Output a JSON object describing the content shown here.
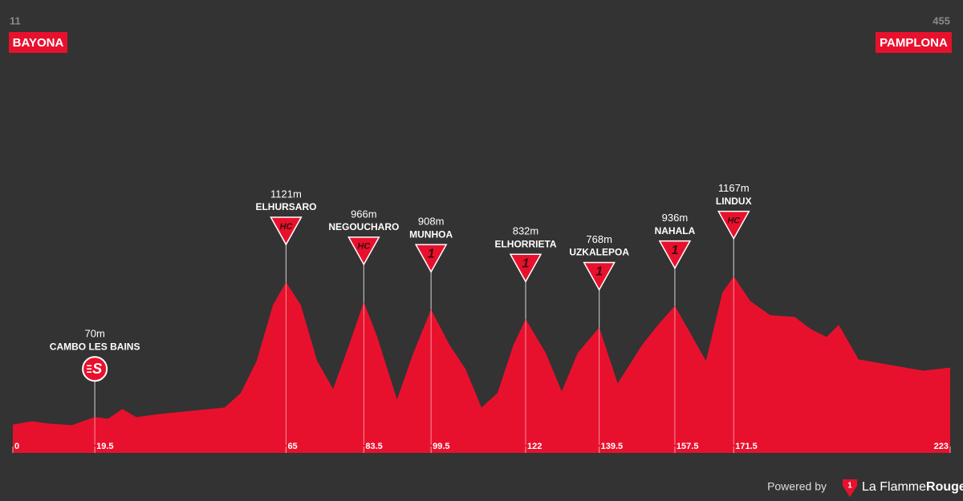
{
  "chart_data": {
    "type": "area",
    "color": "#e8112d",
    "start": {
      "elevation": 11,
      "name": "BAYONA"
    },
    "finish": {
      "elevation": 455,
      "name": "PAMPLONA"
    },
    "xlim": [
      0,
      223
    ],
    "ylim": [
      -210,
      1400
    ],
    "xticks": [
      0,
      19.5,
      65,
      83.5,
      99.5,
      122,
      139.5,
      157.5,
      171.5,
      223
    ],
    "x": [
      0,
      4.6,
      8.4,
      14.1,
      19.5,
      22.7,
      26,
      29.4,
      35.1,
      42.8,
      50.4,
      54.2,
      58,
      61.9,
      65,
      68.5,
      72.4,
      76.2,
      80,
      83.5,
      86.7,
      91.4,
      95.3,
      99.5,
      103.9,
      107.7,
      111.5,
      115.3,
      119.1,
      122,
      126.8,
      130.6,
      134.4,
      139.5,
      143.9,
      149.7,
      153.5,
      157.5,
      161.7,
      164.9,
      168.8,
      171.5,
      175.4,
      180.2,
      186,
      189.8,
      193.6,
      196.5,
      201.2,
      208.9,
      216.5,
      223
    ],
    "values": [
      11,
      37,
      19,
      6,
      70,
      56,
      131,
      69,
      94,
      119,
      144,
      256,
      506,
      944,
      1121,
      944,
      506,
      288,
      631,
      966,
      694,
      206,
      569,
      908,
      631,
      444,
      144,
      256,
      631,
      832,
      569,
      269,
      569,
      768,
      331,
      631,
      788,
      936,
      694,
      506,
      1038,
      1167,
      975,
      863,
      850,
      756,
      694,
      788,
      519,
      475,
      431,
      455
    ],
    "climbs": [
      {
        "name": "CAMBO LES BAINS",
        "km": 19.5,
        "elevation": 70,
        "elevation_label": "70m",
        "category": "S"
      },
      {
        "name": "ELHURSARO",
        "km": 65,
        "elevation": 1121,
        "elevation_label": "1121m",
        "category": "HC"
      },
      {
        "name": "NEGOUCHARO",
        "km": 83.5,
        "elevation": 966,
        "elevation_label": "966m",
        "category": "HC"
      },
      {
        "name": "MUNHOA",
        "km": 99.5,
        "elevation": 908,
        "elevation_label": "908m",
        "category": "1"
      },
      {
        "name": "ELHORRIETA",
        "km": 122,
        "elevation": 832,
        "elevation_label": "832m",
        "category": "1"
      },
      {
        "name": "UZKALEPOA",
        "km": 139.5,
        "elevation": 768,
        "elevation_label": "768m",
        "category": "1"
      },
      {
        "name": "NAHALA",
        "km": 157.5,
        "elevation": 936,
        "elevation_label": "936m",
        "category": "1"
      },
      {
        "name": "LINDUX",
        "km": 171.5,
        "elevation": 1167,
        "elevation_label": "1167m",
        "category": "HC"
      }
    ]
  },
  "footer": {
    "powered": "Powered by",
    "logo": "1",
    "brand": "La Flamme",
    "brand_bold": "Rouge"
  }
}
